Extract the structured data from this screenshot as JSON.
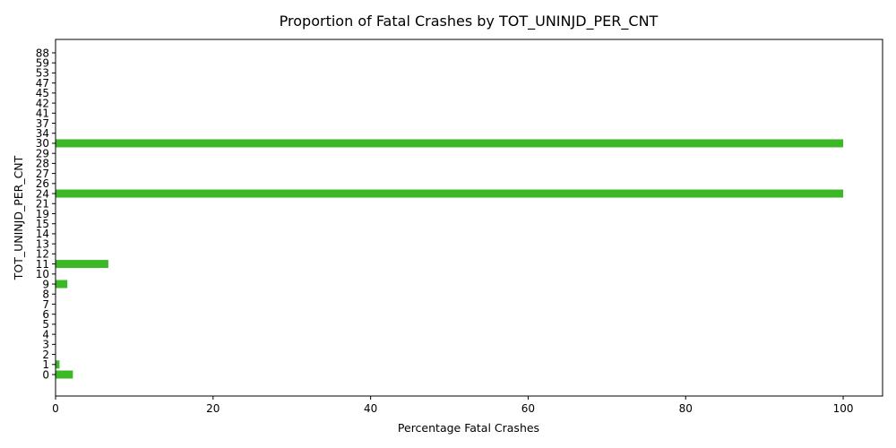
{
  "chart_data": {
    "type": "bar",
    "orientation": "horizontal",
    "title": "Proportion of Fatal Crashes by TOT_UNINJD_PER_CNT",
    "xlabel": "Percentage Fatal Crashes",
    "ylabel": "TOT_UNINJD_PER_CNT",
    "xlim": [
      0,
      105
    ],
    "xticks": [
      "0",
      "20",
      "40",
      "60",
      "80",
      "100"
    ],
    "grid": false,
    "legend": "none",
    "bar_color": "#3cb827",
    "categories": [
      "0",
      "1",
      "2",
      "3",
      "4",
      "5",
      "6",
      "7",
      "8",
      "9",
      "10",
      "11",
      "12",
      "13",
      "14",
      "15",
      "19",
      "21",
      "24",
      "26",
      "27",
      "28",
      "29",
      "30",
      "34",
      "37",
      "41",
      "42",
      "45",
      "47",
      "53",
      "59",
      "88"
    ],
    "values": [
      2.2,
      0.5,
      0,
      0,
      0,
      0,
      0,
      0,
      0,
      1.5,
      0,
      6.7,
      0,
      0,
      0,
      0,
      0,
      0,
      100,
      0,
      0,
      0,
      0,
      100,
      0,
      0,
      0,
      0,
      0,
      0,
      0,
      0,
      0
    ]
  }
}
